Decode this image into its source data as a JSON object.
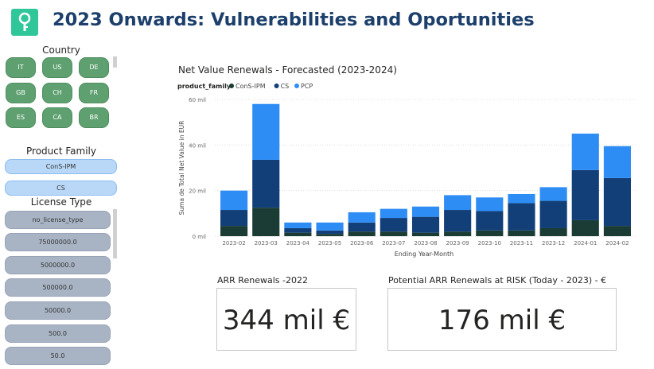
{
  "header": {
    "title": "2023 Onwards: Vulnerabilities and Oportunities"
  },
  "country": {
    "label": "Country",
    "items": [
      "IT",
      "US",
      "DE",
      "GB",
      "CH",
      "FR",
      "ES",
      "CA",
      "BR"
    ]
  },
  "product_family": {
    "label": "Product Family",
    "items": [
      "ConS-IPM",
      "CS"
    ]
  },
  "license_type": {
    "label": "License Type",
    "items": [
      "no_license_type",
      "75000000.0",
      "5000000.0",
      "500000.0",
      "50000.0",
      "500.0",
      "50.0"
    ]
  },
  "kpi_left": {
    "title": "ARR Renewals -2022",
    "value": "344 mil €"
  },
  "kpi_right": {
    "title": "Potential ARR Renewals at RISK (Today - 2023) - €",
    "value": "176 mil €"
  },
  "colors": {
    "ConS-IPM": "#1b3c34",
    "CS": "#123f78",
    "PCP": "#2e8df5",
    "accent": "#2fc79a"
  },
  "chart_data": {
    "type": "bar",
    "stacked": true,
    "title": "Net Value Renewals - Forecasted (2023-2024)",
    "legend_title": "product_family",
    "xlabel": "Ending Year-Month",
    "ylabel": "Suma de Total Net Value in EUR",
    "ylim": [
      0,
      60
    ],
    "ytick_values": [
      0,
      20,
      40,
      60
    ],
    "ytick_labels": [
      "0 mil",
      "20 mil",
      "40 mil",
      "60 mil"
    ],
    "categories": [
      "2023-02",
      "2023-03",
      "2023-04",
      "2023-05",
      "2023-06",
      "2023-07",
      "2023-08",
      "2023-09",
      "2023-10",
      "2023-11",
      "2023-12",
      "2024-01",
      "2024-02"
    ],
    "series": [
      {
        "name": "ConS-IPM",
        "values": [
          4.5,
          12.5,
          1.5,
          1.0,
          2.0,
          2.0,
          1.5,
          2.0,
          2.5,
          2.5,
          3.5,
          7.0,
          4.5
        ]
      },
      {
        "name": "CS",
        "values": [
          7.0,
          21.0,
          2.0,
          1.5,
          4.0,
          6.0,
          7.0,
          9.5,
          8.5,
          12.0,
          12.0,
          22.0,
          21.0
        ]
      },
      {
        "name": "PCP",
        "values": [
          8.5,
          24.5,
          2.5,
          3.5,
          4.5,
          4.0,
          4.5,
          6.5,
          6.0,
          4.0,
          6.0,
          16.0,
          14.0
        ]
      }
    ]
  }
}
